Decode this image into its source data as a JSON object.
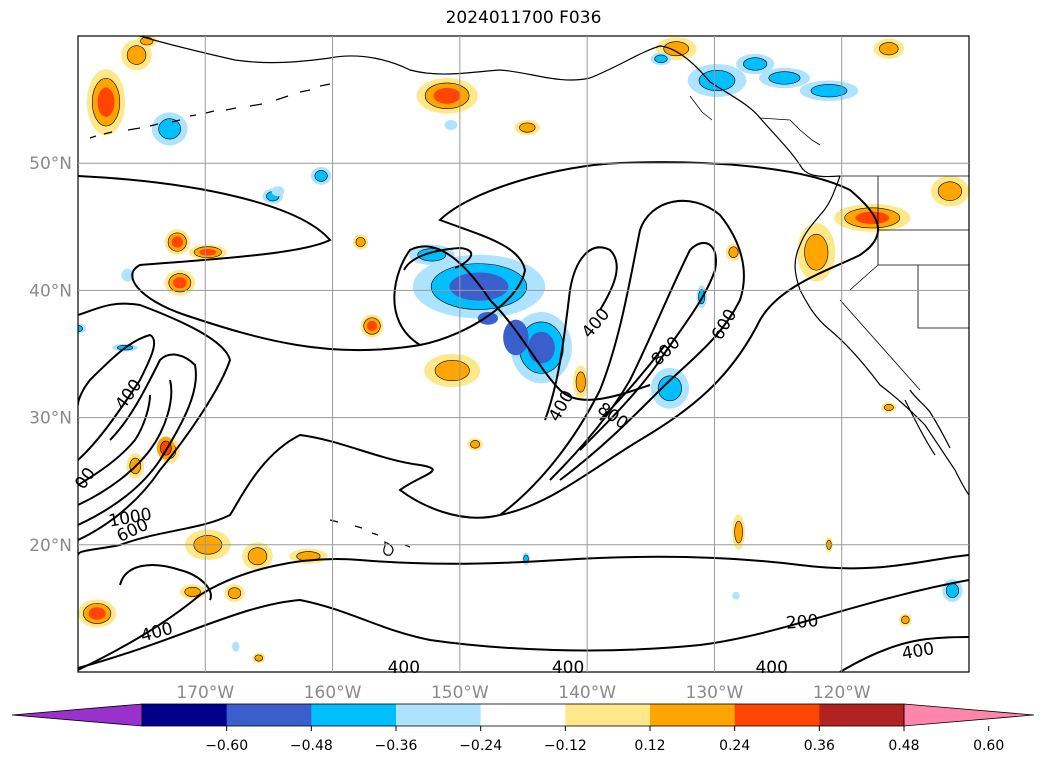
{
  "title": "2024011700 F036",
  "extent": {
    "lon_min": -180,
    "lon_max": -110,
    "lat_min": 10,
    "lat_max": 60
  },
  "lat_labels": [
    {
      "lat": 50,
      "text": "50°N"
    },
    {
      "lat": 40,
      "text": "40°N"
    },
    {
      "lat": 30,
      "text": "30°N"
    },
    {
      "lat": 20,
      "text": "20°N"
    }
  ],
  "lon_labels": [
    {
      "lon": -170,
      "text": "170°W"
    },
    {
      "lon": -160,
      "text": "160°W"
    },
    {
      "lon": -150,
      "text": "150°W"
    },
    {
      "lon": -140,
      "text": "140°W"
    },
    {
      "lon": -130,
      "text": "130°W"
    },
    {
      "lon": -120,
      "text": "120°W"
    }
  ],
  "contour_labels": [
    {
      "text": "400",
      "lon": -176,
      "lat": 31.8,
      "rot": -55
    },
    {
      "text": "00",
      "lon": -179.4,
      "lat": 25.2,
      "rot": -55
    },
    {
      "text": "1000",
      "lon": -175.9,
      "lat": 22.1,
      "rot": -10
    },
    {
      "text": "600",
      "lon": -175.7,
      "lat": 21.1,
      "rot": -25
    },
    {
      "text": "400",
      "lon": -139.3,
      "lat": 37.4,
      "rot": -50
    },
    {
      "text": "400",
      "lon": -142,
      "lat": 30.9,
      "rot": -60
    },
    {
      "text": "800",
      "lon": -138,
      "lat": 30.1,
      "rot": 35
    },
    {
      "text": "800",
      "lon": -133.8,
      "lat": 35.2,
      "rot": -45
    },
    {
      "text": "600",
      "lon": -129.2,
      "lat": 37.3,
      "rot": -60
    },
    {
      "text": "400",
      "lon": -173.8,
      "lat": 13.1,
      "rot": -15
    },
    {
      "text": "400",
      "lon": -154.4,
      "lat": 10.3,
      "rot": 0
    },
    {
      "text": "400",
      "lon": -141.5,
      "lat": 10.3,
      "rot": 0
    },
    {
      "text": "400",
      "lon": -125.5,
      "lat": 10.3,
      "rot": 0
    },
    {
      "text": "200",
      "lon": -123.1,
      "lat": 13.9,
      "rot": -5
    },
    {
      "text": "400",
      "lon": -114,
      "lat": 11.6,
      "rot": -10
    }
  ],
  "colorbar": {
    "ticks": [
      "−0.60",
      "−0.48",
      "−0.36",
      "−0.24",
      "−0.12",
      "0.12",
      "0.24",
      "0.36",
      "0.48",
      "0.60"
    ],
    "colors": [
      "#9932cc",
      "#00008b",
      "#3a5fcd",
      "#00bfff",
      "#aee3ff",
      "#ffffff",
      "#ffe88a",
      "#ffa500",
      "#ff4500",
      "#b22222",
      "#ff85ad"
    ]
  },
  "blobs": [
    {
      "lon": -177.8,
      "lat": 54.8,
      "rx": 1.5,
      "ry": 2.6,
      "levels": [
        1,
        2,
        3
      ]
    },
    {
      "lon": -175.4,
      "lat": 58.5,
      "rx": 1.2,
      "ry": 1.2,
      "levels": [
        1,
        2
      ]
    },
    {
      "lon": -174.6,
      "lat": 59.6,
      "rx": 0.8,
      "ry": 0.5,
      "levels": [
        1,
        2
      ]
    },
    {
      "lon": -172.0,
      "lat": 40.6,
      "rx": 1.2,
      "ry": 1.0,
      "levels": [
        1,
        2,
        3
      ]
    },
    {
      "lon": -169.8,
      "lat": 43.0,
      "rx": 1.5,
      "ry": 0.6,
      "levels": [
        1,
        2,
        3
      ]
    },
    {
      "lon": -172.2,
      "lat": 43.8,
      "rx": 1.0,
      "ry": 1.0,
      "levels": [
        1,
        2,
        3
      ]
    },
    {
      "lon": -151.0,
      "lat": 55.3,
      "rx": 2.4,
      "ry": 1.4,
      "levels": [
        1,
        2,
        3
      ]
    },
    {
      "lon": -133.0,
      "lat": 59.0,
      "rx": 1.6,
      "ry": 0.9,
      "levels": [
        1,
        2
      ]
    },
    {
      "lon": -116.3,
      "lat": 59.0,
      "rx": 1.2,
      "ry": 0.8,
      "levels": [
        1,
        2
      ]
    },
    {
      "lon": -156.9,
      "lat": 37.2,
      "rx": 0.9,
      "ry": 0.9,
      "levels": [
        1,
        2,
        3
      ]
    },
    {
      "lon": -150.6,
      "lat": 33.7,
      "rx": 2.2,
      "ry": 1.3,
      "levels": [
        1,
        2
      ]
    },
    {
      "lon": -140.5,
      "lat": 32.8,
      "rx": 0.6,
      "ry": 1.3,
      "levels": [
        1,
        2
      ]
    },
    {
      "lon": -128.5,
      "lat": 43.0,
      "rx": 0.6,
      "ry": 0.7,
      "levels": [
        1,
        2
      ]
    },
    {
      "lon": -117.6,
      "lat": 45.7,
      "rx": 3.0,
      "ry": 1.1,
      "levels": [
        1,
        2,
        3
      ]
    },
    {
      "lon": -111.5,
      "lat": 47.8,
      "rx": 1.5,
      "ry": 1.2,
      "levels": [
        1,
        2
      ]
    },
    {
      "lon": -122.0,
      "lat": 43.0,
      "rx": 1.5,
      "ry": 2.3,
      "levels": [
        1,
        2
      ]
    },
    {
      "lon": -148.8,
      "lat": 27.9,
      "rx": 0.6,
      "ry": 0.5,
      "levels": [
        1,
        2
      ]
    },
    {
      "lon": -172.8,
      "lat": 27.4,
      "rx": 0.8,
      "ry": 1.0,
      "levels": [
        1,
        2
      ]
    },
    {
      "lon": -169.8,
      "lat": 20.0,
      "rx": 1.8,
      "ry": 1.2,
      "levels": [
        1,
        2
      ]
    },
    {
      "lon": -165.9,
      "lat": 19.1,
      "rx": 1.2,
      "ry": 1.1,
      "levels": [
        1,
        2
      ]
    },
    {
      "lon": -161.9,
      "lat": 19.1,
      "rx": 1.5,
      "ry": 0.6,
      "levels": [
        1,
        2
      ]
    },
    {
      "lon": -167.7,
      "lat": 16.2,
      "rx": 0.8,
      "ry": 0.7,
      "levels": [
        1,
        2
      ]
    },
    {
      "lon": -178.5,
      "lat": 14.6,
      "rx": 1.5,
      "ry": 1.1,
      "levels": [
        1,
        2,
        3
      ]
    },
    {
      "lon": -171.0,
      "lat": 16.3,
      "rx": 1.0,
      "ry": 0.6,
      "levels": [
        1,
        2
      ]
    },
    {
      "lon": -128.1,
      "lat": 21.0,
      "rx": 0.5,
      "ry": 1.4,
      "levels": [
        1,
        2
      ]
    },
    {
      "lon": -121.0,
      "lat": 20.0,
      "rx": 0.3,
      "ry": 0.6,
      "levels": [
        1,
        2
      ]
    },
    {
      "lon": -116.3,
      "lat": 30.8,
      "rx": 0.6,
      "ry": 0.4,
      "levels": [
        1,
        2
      ]
    },
    {
      "lon": -115.0,
      "lat": 14.1,
      "rx": 0.5,
      "ry": 0.5,
      "levels": [
        1,
        2
      ]
    },
    {
      "lon": -165.8,
      "lat": 11.1,
      "rx": 0.5,
      "ry": 0.4,
      "levels": [
        1,
        2
      ]
    },
    {
      "lon": -175.5,
      "lat": 26.2,
      "rx": 0.7,
      "ry": 1.0,
      "levels": [
        1,
        2
      ]
    },
    {
      "lon": -173.1,
      "lat": 27.6,
      "rx": 0.7,
      "ry": 0.9,
      "levels": [
        2,
        3
      ]
    },
    {
      "lon": -157.8,
      "lat": 43.8,
      "rx": 0.6,
      "ry": 0.6,
      "levels": [
        1,
        2
      ]
    },
    {
      "lon": -144.7,
      "lat": 52.8,
      "rx": 1.0,
      "ry": 0.6,
      "levels": [
        1,
        2
      ]
    },
    {
      "lon": -172.8,
      "lat": 52.7,
      "rx": 1.4,
      "ry": 1.3,
      "levels": [
        -1,
        -2
      ]
    },
    {
      "lon": -160.9,
      "lat": 49.0,
      "rx": 0.8,
      "ry": 0.7,
      "levels": [
        -1,
        -2
      ]
    },
    {
      "lon": -148.5,
      "lat": 40.3,
      "rx": 5.2,
      "ry": 2.5,
      "levels": [
        -1,
        -2,
        -3
      ]
    },
    {
      "lon": -143.6,
      "lat": 35.5,
      "rx": 2.4,
      "ry": 2.8,
      "levels": [
        -1,
        -2,
        -3
      ]
    },
    {
      "lon": -152.2,
      "lat": 42.8,
      "rx": 1.8,
      "ry": 0.8,
      "levels": [
        -1,
        -2
      ]
    },
    {
      "lon": -133.5,
      "lat": 32.3,
      "rx": 1.5,
      "ry": 1.6,
      "levels": [
        -1,
        -2
      ]
    },
    {
      "lon": -131.0,
      "lat": 39.5,
      "rx": 0.4,
      "ry": 0.9,
      "levels": [
        -1,
        -2
      ]
    },
    {
      "lon": -129.8,
      "lat": 56.5,
      "rx": 2.3,
      "ry": 1.3,
      "levels": [
        -1,
        -2
      ]
    },
    {
      "lon": -126.8,
      "lat": 57.8,
      "rx": 1.5,
      "ry": 0.8,
      "levels": [
        -1,
        -2
      ]
    },
    {
      "lon": -124.5,
      "lat": 56.7,
      "rx": 2.0,
      "ry": 0.8,
      "levels": [
        -1,
        -2
      ]
    },
    {
      "lon": -121.0,
      "lat": 55.7,
      "rx": 2.3,
      "ry": 0.8,
      "levels": [
        -1,
        -2
      ]
    },
    {
      "lon": -134.2,
      "lat": 58.2,
      "rx": 0.8,
      "ry": 0.5,
      "levels": [
        -1,
        -2
      ]
    },
    {
      "lon": -150.7,
      "lat": 53.0,
      "rx": 0.5,
      "ry": 0.4,
      "levels": [
        -1
      ]
    },
    {
      "lon": -164.7,
      "lat": 47.4,
      "rx": 0.8,
      "ry": 0.6,
      "levels": [
        -1,
        -2
      ]
    },
    {
      "lon": -176.3,
      "lat": 35.5,
      "rx": 1.0,
      "ry": 0.3,
      "levels": [
        -1,
        -2
      ]
    },
    {
      "lon": -180.0,
      "lat": 37.0,
      "rx": 0.6,
      "ry": 0.4,
      "levels": [
        -1,
        -2
      ]
    },
    {
      "lon": -111.3,
      "lat": 16.4,
      "rx": 0.8,
      "ry": 0.9,
      "levels": [
        -1,
        -2
      ]
    },
    {
      "lon": -144.8,
      "lat": 18.9,
      "rx": 0.3,
      "ry": 0.5,
      "levels": [
        -1,
        -2
      ]
    },
    {
      "lon": -128.3,
      "lat": 16.0,
      "rx": 0.3,
      "ry": 0.3,
      "levels": [
        -1
      ]
    },
    {
      "lon": -167.6,
      "lat": 12.0,
      "rx": 0.3,
      "ry": 0.4,
      "levels": [
        -1
      ]
    },
    {
      "lon": -147.8,
      "lat": 37.8,
      "rx": 0.8,
      "ry": 0.5,
      "levels": [
        -3
      ]
    },
    {
      "lon": -145.6,
      "lat": 36.3,
      "rx": 1.0,
      "ry": 1.4,
      "levels": [
        -3
      ]
    },
    {
      "lon": -164.3,
      "lat": 47.8,
      "rx": 0.5,
      "ry": 0.4,
      "levels": [
        -1
      ]
    },
    {
      "lon": -176.1,
      "lat": 41.2,
      "rx": 0.5,
      "ry": 0.5,
      "levels": [
        -1
      ]
    }
  ]
}
